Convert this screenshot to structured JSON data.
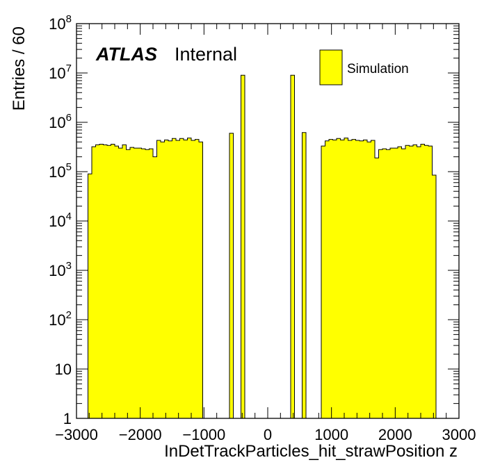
{
  "chart_data": {
    "type": "bar",
    "xlabel": "InDetTrackParticles_hit_strawPosition z",
    "ylabel": "Entries / 60",
    "xlim": [
      -3000,
      3000
    ],
    "ylim": [
      1,
      100000000
    ],
    "yscale": "log",
    "bin_width": 60,
    "x_ticks": [
      {
        "v": -3000,
        "t": "−3000"
      },
      {
        "v": -2000,
        "t": "−2000"
      },
      {
        "v": -1000,
        "t": "−1000"
      },
      {
        "v": 0,
        "t": "0"
      },
      {
        "v": 1000,
        "t": "1000"
      },
      {
        "v": 2000,
        "t": "2000"
      },
      {
        "v": 3000,
        "t": "3000"
      }
    ],
    "y_ticks": [
      {
        "e": 0,
        "base": "1",
        "exp": ""
      },
      {
        "e": 1,
        "base": "10",
        "exp": ""
      },
      {
        "e": 2,
        "base": "10",
        "exp": "2"
      },
      {
        "e": 3,
        "base": "10",
        "exp": "3"
      },
      {
        "e": 4,
        "base": "10",
        "exp": "4"
      },
      {
        "e": 5,
        "base": "10",
        "exp": "5"
      },
      {
        "e": 6,
        "base": "10",
        "exp": "6"
      },
      {
        "e": 7,
        "base": "10",
        "exp": "7"
      },
      {
        "e": 8,
        "base": "10",
        "exp": "8"
      }
    ],
    "fill_color": "#ffff00",
    "line_color": "#000000",
    "legend": {
      "label": "Simulation",
      "position": "top-right"
    },
    "series": [
      {
        "x_start": -2820,
        "values": [
          90000,
          320000,
          350000,
          360000,
          350000,
          340000,
          360000,
          330000,
          300000,
          350000,
          280000,
          310000,
          300000,
          300000,
          290000,
          280000,
          290000,
          200000,
          430000,
          400000,
          440000,
          420000,
          470000,
          430000,
          470000,
          440000,
          480000,
          430000,
          450000,
          400000
        ]
      },
      {
        "x_start": -600,
        "values": [
          600000
        ]
      },
      {
        "x_start": -420,
        "values": [
          9000000
        ]
      },
      {
        "x_start": 360,
        "values": [
          9000000
        ]
      },
      {
        "x_start": 540,
        "values": [
          620000
        ]
      },
      {
        "x_start": 840,
        "values": [
          330000,
          420000,
          450000,
          440000,
          470000,
          440000,
          480000,
          430000,
          450000,
          430000,
          420000,
          440000,
          400000,
          430000,
          190000,
          280000,
          290000,
          280000,
          300000,
          300000,
          320000,
          290000,
          340000,
          330000,
          350000,
          320000,
          360000,
          340000,
          330000,
          85000
        ]
      }
    ]
  },
  "branding": {
    "atlas": "ATLAS",
    "status": "Internal"
  }
}
